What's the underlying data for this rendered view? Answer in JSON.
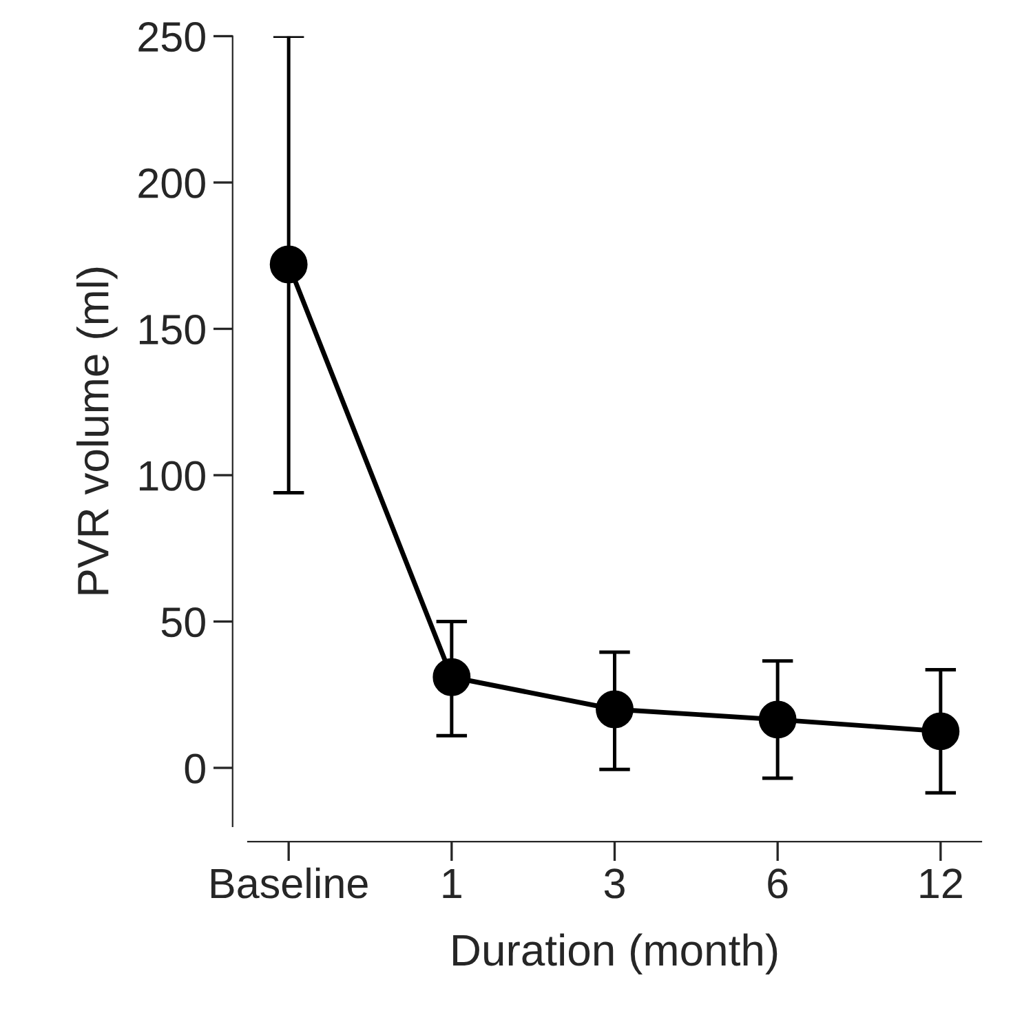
{
  "chart_data": {
    "type": "line",
    "xlabel": "Duration (month)",
    "ylabel": "PVR volume (ml)",
    "categories": [
      "Baseline",
      "1",
      "3",
      "6",
      "12"
    ],
    "series": [
      {
        "color": "#000000",
        "values": [
          172,
          31,
          20,
          16.5,
          12.5
        ],
        "errors": [
          [
            94,
            250
          ],
          [
            11,
            50
          ],
          [
            -0.5,
            39.5
          ],
          [
            -3.5,
            36.5
          ],
          [
            -8.5,
            33.5
          ]
        ]
      }
    ],
    "ylim": [
      -20,
      250
    ],
    "yticks": [
      0,
      50,
      100,
      150,
      200,
      250
    ],
    "marker": "circle",
    "line_style": "solid",
    "grid": false,
    "legend": false
  }
}
